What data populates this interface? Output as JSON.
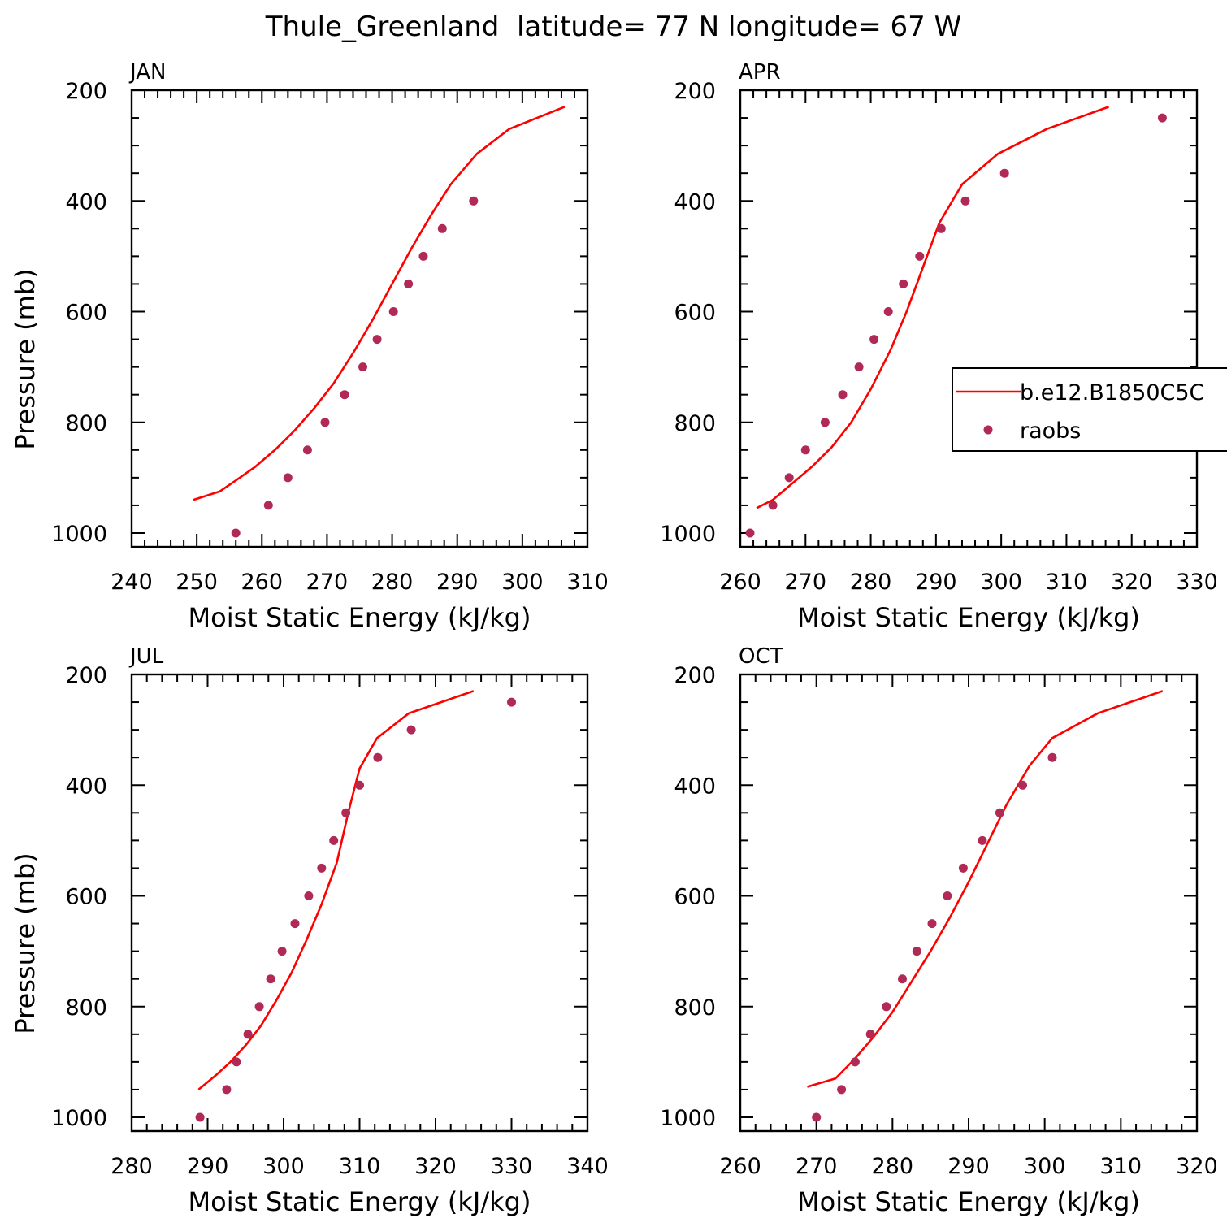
{
  "title": "Thule_Greenland  latitude= 77 N longitude= 67 W",
  "legend": {
    "model_label": "b.e12.B1850C5C",
    "obs_label": "raobs"
  },
  "colors": {
    "model_line": "#ff0000",
    "obs_marker": "#b02a55"
  },
  "chart_data": [
    {
      "type": "line",
      "panel": "JAN",
      "xlabel": "Moist Static Energy (kJ/kg)",
      "ylabel": "Pressure (mb)",
      "xlim": [
        240,
        310
      ],
      "ylim": [
        1000,
        200
      ],
      "xticks": [
        240,
        250,
        260,
        270,
        280,
        290,
        300,
        310
      ],
      "yticks": [
        200,
        400,
        600,
        800,
        1000
      ],
      "y_inverted": true,
      "series": [
        {
          "name": "b.e12.B1850C5C",
          "kind": "line",
          "x": [
            249.5,
            253.5,
            256,
            259,
            262,
            265,
            268,
            271,
            274,
            277,
            280,
            283,
            286,
            289,
            293,
            298,
            306.5
          ],
          "y": [
            940,
            925,
            905,
            880,
            850,
            815,
            775,
            730,
            675,
            615,
            550,
            485,
            425,
            370,
            315,
            270,
            230
          ]
        },
        {
          "name": "raobs",
          "kind": "scatter",
          "x": [
            256,
            261,
            264,
            267,
            269.7,
            272.7,
            275.5,
            277.7,
            280.2,
            282.5,
            284.8,
            287.7,
            292.5
          ],
          "y": [
            1000,
            950,
            900,
            850,
            800,
            750,
            700,
            650,
            600,
            550,
            500,
            450,
            400
          ]
        }
      ]
    },
    {
      "type": "line",
      "panel": "APR",
      "xlabel": "Moist Static Energy (kJ/kg)",
      "ylabel": "",
      "xlim": [
        260,
        330
      ],
      "ylim": [
        1000,
        200
      ],
      "xticks": [
        260,
        270,
        280,
        290,
        300,
        310,
        320,
        330
      ],
      "yticks": [
        200,
        400,
        600,
        800,
        1000
      ],
      "y_inverted": true,
      "series": [
        {
          "name": "b.e12.B1850C5C",
          "kind": "line",
          "x": [
            262.5,
            265,
            268,
            271,
            274,
            277,
            280,
            283,
            285.5,
            288,
            290.5,
            294,
            299.5,
            307,
            316.5
          ],
          "y": [
            955,
            940,
            910,
            880,
            845,
            800,
            740,
            670,
            600,
            520,
            440,
            370,
            315,
            270,
            230
          ]
        },
        {
          "name": "raobs",
          "kind": "scatter",
          "x": [
            261.5,
            265,
            267.5,
            270,
            273,
            275.7,
            278.2,
            280.5,
            282.7,
            285,
            287.5,
            290.8,
            294.5,
            300.5,
            324.7
          ],
          "y": [
            1000,
            950,
            900,
            850,
            800,
            750,
            700,
            650,
            600,
            550,
            500,
            450,
            400,
            350,
            250
          ]
        }
      ]
    },
    {
      "type": "line",
      "panel": "JUL",
      "xlabel": "Moist Static Energy (kJ/kg)",
      "ylabel": "Pressure (mb)",
      "xlim": [
        280,
        340
      ],
      "ylim": [
        1000,
        200
      ],
      "xticks": [
        280,
        290,
        300,
        310,
        320,
        330,
        340
      ],
      "yticks": [
        200,
        400,
        600,
        800,
        1000
      ],
      "y_inverted": true,
      "series": [
        {
          "name": "b.e12.B1850C5C",
          "kind": "line",
          "x": [
            288.8,
            291,
            293,
            295,
            297,
            299,
            301,
            303,
            305,
            307,
            308.5,
            310,
            312.3,
            316.5,
            325
          ],
          "y": [
            950,
            925,
            900,
            870,
            835,
            790,
            740,
            680,
            615,
            540,
            450,
            370,
            315,
            270,
            230
          ]
        },
        {
          "name": "raobs",
          "kind": "scatter",
          "x": [
            289,
            292.5,
            293.8,
            295.3,
            296.8,
            298.3,
            299.8,
            301.5,
            303.3,
            305,
            306.6,
            308.2,
            310,
            312.4,
            316.8,
            330
          ],
          "y": [
            1000,
            950,
            900,
            850,
            800,
            750,
            700,
            650,
            600,
            550,
            500,
            450,
            400,
            350,
            300,
            250
          ]
        }
      ]
    },
    {
      "type": "line",
      "panel": "OCT",
      "xlabel": "Moist Static Energy (kJ/kg)",
      "ylabel": "",
      "xlim": [
        260,
        320
      ],
      "ylim": [
        1000,
        200
      ],
      "xticks": [
        260,
        270,
        280,
        290,
        300,
        310,
        320
      ],
      "yticks": [
        200,
        400,
        600,
        800,
        1000
      ],
      "y_inverted": true,
      "series": [
        {
          "name": "b.e12.B1850C5C",
          "kind": "line",
          "x": [
            268.8,
            272.5,
            275,
            277.5,
            280,
            282.5,
            285,
            287.5,
            290,
            292.5,
            295,
            298,
            301,
            307,
            315.5
          ],
          "y": [
            945,
            930,
            895,
            855,
            810,
            755,
            700,
            640,
            575,
            505,
            435,
            365,
            315,
            270,
            230
          ]
        },
        {
          "name": "raobs",
          "kind": "scatter",
          "x": [
            270,
            273.3,
            275.1,
            277.1,
            279.2,
            281.3,
            283.2,
            285.2,
            287.2,
            289.3,
            291.8,
            294.1,
            297.1,
            301
          ],
          "y": [
            1000,
            950,
            900,
            850,
            800,
            750,
            700,
            650,
            600,
            550,
            500,
            450,
            400,
            350
          ]
        }
      ]
    }
  ]
}
